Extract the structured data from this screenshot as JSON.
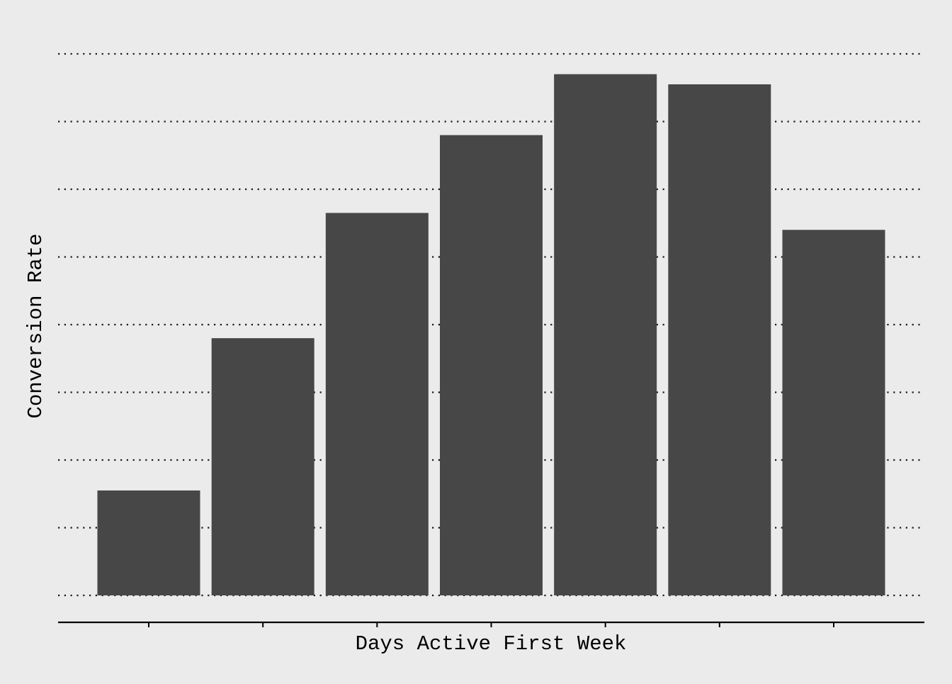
{
  "chart_data": {
    "type": "bar",
    "title": "",
    "xlabel": "Days Active First Week",
    "ylabel": "Conversion Rate",
    "categories": [
      "",
      "",
      "",
      "",
      "",
      "",
      ""
    ],
    "values": [
      0.155,
      0.38,
      0.565,
      0.68,
      0.77,
      0.755,
      0.54
    ],
    "ylim": [
      0,
      0.8
    ],
    "y_gridlines": [
      0,
      0.1,
      0.2,
      0.3,
      0.4,
      0.5,
      0.6,
      0.7,
      0.8
    ],
    "grid": "horizontal-dotted",
    "legend": "none",
    "x_tick_labels_shown": false,
    "y_tick_labels_shown": false,
    "colors": {
      "background": "#ebebeb",
      "bar": "#474747",
      "grid": "#1a1a1a",
      "axis": "#000000",
      "text": "#000000"
    }
  }
}
